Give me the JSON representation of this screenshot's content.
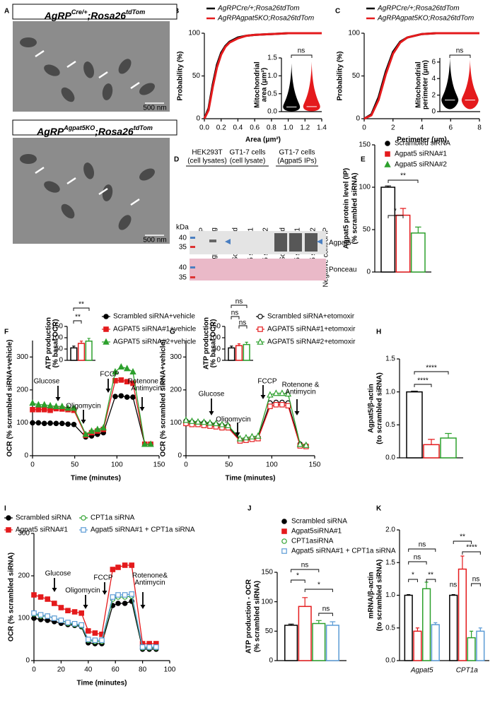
{
  "panel_labels": [
    "A",
    "B",
    "C",
    "D",
    "E",
    "F",
    "G",
    "H",
    "I",
    "J",
    "K"
  ],
  "micrographs": [
    {
      "label": [
        "AgRP",
        "Cre/+",
        ";Rosa26",
        "tdTom"
      ],
      "scale_bar": "500 nm"
    },
    {
      "label": [
        "AgRP",
        "Agpat5KO",
        ";Rosa26",
        "tdTom"
      ],
      "scale_bar": "500 nm"
    }
  ],
  "blot": {
    "groups": [
      [
        "HEK293T",
        "(cell lysates)"
      ],
      [
        "GT1-7 cells",
        "(cell lysate)"
      ],
      [
        "GT1-7 cells",
        "(Agpat5 IPs)"
      ]
    ],
    "lanes": [
      "GFP",
      "Agpat5Flag",
      "Scrambled",
      "Agpat5 siRNA#1",
      "Agpat5 siRNA#2",
      "Scrambled",
      "Agpat5 siRNA#1",
      "Agpat5 siRNA#2",
      "Negative control IP"
    ],
    "unit": "kDa",
    "markers": [
      40,
      35,
      40,
      35
    ],
    "bands": [
      "Agpat5",
      "Ponceau"
    ]
  },
  "chart_data": [
    {
      "type": "line",
      "xlabel": "Area (μm²)",
      "ylabel": "Probability (%)",
      "xlim": [
        0,
        1.4
      ],
      "xticks": [
        {
          "value": 0,
          "label": "0.0"
        },
        0.2,
        0.4,
        0.6,
        0.8,
        {
          "value": 1,
          "label": "1.0"
        },
        1.2,
        1.4
      ],
      "ylim": [
        0,
        100
      ],
      "yticks": [
        0,
        50,
        100
      ],
      "x": [
        0,
        0.05,
        0.1,
        0.15,
        0.2,
        0.25,
        0.3,
        0.4,
        0.5,
        0.6,
        0.8,
        1,
        1.2,
        1.4
      ],
      "series": [
        {
          "name": "AgRPCre/+;Rosa26tdTom",
          "color": "#000000",
          "values": [
            0,
            12,
            40,
            63,
            77,
            85,
            90,
            95,
            97,
            98,
            99,
            100,
            100,
            100
          ]
        },
        {
          "name": "AgRPAgpat5KO;Rosa26tdTom",
          "color": "#e41a1c",
          "values": [
            0,
            10,
            37,
            60,
            75,
            84,
            89,
            94,
            97,
            98,
            99,
            100,
            100,
            100
          ]
        }
      ]
    },
    {
      "type": "line",
      "xlabel": "Perimeter (μm)",
      "ylabel": "Probability (%)",
      "xlim": [
        0,
        8
      ],
      "xticks": [
        0,
        2,
        4,
        6,
        8
      ],
      "ylim": [
        0,
        100
      ],
      "yticks": [
        0,
        50,
        100
      ],
      "x": [
        0,
        0.5,
        1,
        1.5,
        2,
        2.5,
        3,
        4,
        5,
        6,
        7,
        8
      ],
      "series": [
        {
          "name": "AgRPCre/+;Rosa26tdTom",
          "color": "#000000",
          "values": [
            0,
            5,
            25,
            55,
            78,
            90,
            95,
            99,
            100,
            100,
            100,
            100
          ]
        },
        {
          "name": "AgRPAgpat5KO;Rosa26tdTom",
          "color": "#e41a1c",
          "values": [
            0,
            4,
            22,
            52,
            76,
            89,
            95,
            99,
            100,
            100,
            100,
            100
          ]
        }
      ]
    },
    {
      "type": "violin",
      "ylabel": [
        "Mitochondrial",
        "area (μm²)"
      ],
      "ylim": [
        0,
        1.5
      ],
      "yticks": [
        {
          "value": 0,
          "label": "0.0"
        },
        0.5,
        {
          "value": 1,
          "label": "1.0"
        },
        1.5
      ],
      "series": [
        {
          "color": "#000000",
          "min": 0.01,
          "median": 0.13,
          "max": 1.35
        },
        {
          "color": "#e41a1c",
          "min": 0.01,
          "median": 0.14,
          "max": 1.4
        }
      ],
      "annotations": [
        "ns"
      ]
    },
    {
      "type": "violin",
      "ylabel": [
        "Mitochondrial",
        "perimeter (μm)"
      ],
      "ylim": [
        0,
        6.5
      ],
      "yticks": [
        0,
        2,
        4,
        6
      ],
      "series": [
        {
          "color": "#000000",
          "min": 0.3,
          "median": 1.4,
          "max": 6.5
        },
        {
          "color": "#e41a1c",
          "min": 0.3,
          "median": 1.4,
          "max": 6.3
        }
      ],
      "annotations": [
        "ns"
      ]
    },
    {
      "type": "bar",
      "ylabel": [
        "Agpat5 protein level (IP)",
        "(% scrambled siRNA)"
      ],
      "ylim": [
        0,
        150
      ],
      "yticks": [
        0,
        50,
        100,
        150
      ],
      "series": [
        {
          "name": "Scrambled siRNA",
          "color": "#000000",
          "marker": "circle",
          "values": [
            100
          ],
          "errors": [
            1.5
          ]
        },
        {
          "name": "Agpat5 siRNA#1",
          "color": "#e41a1c",
          "marker": "square",
          "values": [
            67
          ],
          "errors": [
            8
          ]
        },
        {
          "name": "Agpat5 siRNA#2",
          "color": "#2ca02c",
          "marker": "triangle",
          "values": [
            46
          ],
          "errors": [
            7
          ]
        }
      ],
      "annotations": [
        "*",
        "**"
      ]
    },
    {
      "type": "line",
      "xlabel": "Time (minutes)",
      "ylabel": "OCR (% scrambled siRNA+vehicle)",
      "xlim": [
        0,
        150
      ],
      "xticks": [
        0,
        50,
        100,
        150
      ],
      "ylim": [
        0,
        350
      ],
      "yticks": [
        0,
        100,
        200,
        300
      ],
      "x": [
        0,
        7,
        14,
        21,
        28,
        35,
        42,
        49,
        63,
        70,
        77,
        84,
        98,
        105,
        112,
        119,
        133,
        140
      ],
      "series": [
        {
          "name": "Scrambled siRNA+vehicle",
          "color": "#000000",
          "marker": "circle",
          "values": [
            100,
            100,
            98,
            99,
            98,
            98,
            96,
            95,
            57,
            60,
            65,
            70,
            180,
            182,
            178,
            178,
            35,
            35
          ]
        },
        {
          "name": "AGPAT5 siRNA#1+vehicle",
          "color": "#e41a1c",
          "marker": "square",
          "values": [
            140,
            140,
            140,
            138,
            143,
            142,
            140,
            138,
            62,
            70,
            75,
            80,
            228,
            230,
            225,
            220,
            35,
            35
          ]
        },
        {
          "name": "AGPAT5 siRNA#2+vehicle",
          "color": "#2ca02c",
          "marker": "triangle",
          "values": [
            160,
            155,
            155,
            152,
            150,
            150,
            145,
            145,
            65,
            75,
            80,
            85,
            255,
            270,
            265,
            255,
            35,
            35
          ]
        }
      ],
      "annotations": [
        "Glucose",
        "Oligomycin",
        "FCCP",
        [
          "Rotenone &",
          "Antimycin"
        ]
      ]
    },
    {
      "type": "bar",
      "ylabel": [
        "ATP production",
        "(% basal OCR)"
      ],
      "ylim": [
        0,
        150
      ],
      "yticks": [
        0,
        50,
        100,
        150
      ],
      "series": [
        {
          "color": "#000000",
          "values": [
            55
          ],
          "errors": [
            8
          ]
        },
        {
          "color": "#e41a1c",
          "values": [
            75
          ],
          "errors": [
            10
          ]
        },
        {
          "color": "#2ca02c",
          "values": [
            85
          ],
          "errors": [
            12
          ]
        }
      ],
      "annotations": [
        "**",
        "**"
      ]
    },
    {
      "type": "line",
      "xlabel": "Time (minutes)",
      "ylabel": "OCR (% scrambled siRNA+vehicle)",
      "xlim": [
        0,
        150
      ],
      "xticks": [
        0,
        50,
        100,
        150
      ],
      "ylim": [
        0,
        350
      ],
      "yticks": [
        0,
        100,
        200,
        300
      ],
      "x": [
        0,
        7,
        14,
        21,
        28,
        35,
        42,
        49,
        63,
        70,
        77,
        84,
        98,
        105,
        112,
        119,
        133,
        140
      ],
      "series": [
        {
          "name": "Scrambled siRNA+etomoxir",
          "color": "#000000",
          "marker": "circle",
          "open": true,
          "values": [
            105,
            102,
            100,
            100,
            97,
            95,
            92,
            90,
            48,
            50,
            52,
            55,
            160,
            162,
            162,
            160,
            35,
            30
          ]
        },
        {
          "name": "AGPAT5 siRNA#1+etomoxir",
          "color": "#e41a1c",
          "marker": "square",
          "open": true,
          "values": [
            98,
            95,
            95,
            92,
            90,
            88,
            85,
            85,
            45,
            47,
            50,
            52,
            150,
            155,
            155,
            152,
            30,
            28
          ]
        },
        {
          "name": "AGPAT5 siRNA#2+etomoxir",
          "color": "#2ca02c",
          "marker": "triangle",
          "open": true,
          "values": [
            108,
            105,
            103,
            102,
            100,
            98,
            95,
            92,
            52,
            55,
            58,
            60,
            185,
            190,
            190,
            188,
            35,
            32
          ]
        }
      ],
      "annotations": [
        "Glucose",
        "Oligomycin",
        "FCCP",
        [
          "Rotenone &",
          "Antimycin"
        ]
      ]
    },
    {
      "type": "bar",
      "ylabel": [
        "ATP production",
        "(% basal OCR)"
      ],
      "ylim": [
        0,
        150
      ],
      "yticks": [
        0,
        50,
        100,
        150
      ],
      "series": [
        {
          "color": "#000000",
          "values": [
            55
          ],
          "errors": [
            8
          ]
        },
        {
          "color": "#e41a1c",
          "values": [
            65
          ],
          "errors": [
            8
          ]
        },
        {
          "color": "#2ca02c",
          "values": [
            70
          ],
          "errors": [
            10
          ]
        }
      ],
      "annotations": [
        "ns",
        "ns",
        "ns"
      ]
    },
    {
      "type": "bar",
      "ylabel": [
        "Agpat5/β-actin",
        "(to scrambled siRNA)"
      ],
      "ylim": [
        0,
        1.5
      ],
      "yticks": [
        {
          "value": 0,
          "label": "0.0"
        },
        0.5,
        {
          "value": 1,
          "label": "1.0"
        },
        1.5
      ],
      "series": [
        {
          "color": "#000000",
          "values": [
            1
          ],
          "errors": [
            0.01
          ]
        },
        {
          "color": "#e41a1c",
          "values": [
            0.2
          ],
          "errors": [
            0.08
          ]
        },
        {
          "color": "#2ca02c",
          "values": [
            0.3
          ],
          "errors": [
            0.07
          ]
        }
      ],
      "annotations": [
        "****",
        "****"
      ]
    },
    {
      "type": "line",
      "xlabel": "Time (minutes)",
      "ylabel": "OCR (% scrambled siRNA)",
      "xlim": [
        0,
        100
      ],
      "xticks": [
        0,
        20,
        40,
        60,
        80,
        100
      ],
      "ylim": [
        0,
        300
      ],
      "yticks": [
        0,
        100,
        200,
        300
      ],
      "x": [
        0,
        5,
        10,
        15,
        20,
        25,
        30,
        35,
        40,
        45,
        50,
        58,
        62,
        67,
        72,
        80,
        85,
        90
      ],
      "series": [
        {
          "name": "Scrambled siRNA",
          "color": "#000000",
          "marker": "circle",
          "values": [
            100,
            97,
            95,
            92,
            88,
            85,
            83,
            80,
            42,
            40,
            40,
            130,
            135,
            135,
            140,
            27,
            27,
            27
          ]
        },
        {
          "name": "Agpat5 siRNA#1",
          "color": "#e41a1c",
          "marker": "square",
          "values": [
            155,
            150,
            145,
            135,
            125,
            118,
            115,
            112,
            70,
            65,
            62,
            215,
            220,
            225,
            225,
            40,
            40,
            40
          ]
        },
        {
          "name": "CPT1a siRNA",
          "color": "#2ca02c",
          "marker": "circle",
          "open": true,
          "values": [
            110,
            105,
            105,
            100,
            95,
            88,
            85,
            82,
            48,
            45,
            45,
            145,
            150,
            150,
            152,
            30,
            30,
            30
          ]
        },
        {
          "name": "Agpat5 siRNA#1 + CPT1a siRNA",
          "color": "#5b9bd5",
          "marker": "square",
          "open": true,
          "values": [
            112,
            108,
            105,
            100,
            95,
            90,
            87,
            84,
            50,
            48,
            48,
            150,
            155,
            155,
            157,
            32,
            32,
            32
          ]
        }
      ],
      "annotations": [
        "Glucose",
        "Oligomycin",
        "FCCP",
        [
          "Rotenone&",
          "Antimycin"
        ]
      ]
    },
    {
      "type": "bar",
      "ylabel": [
        "ATP production - OCR",
        "(% scrambled siRNA)"
      ],
      "ylim": [
        0,
        150
      ],
      "yticks": [
        0,
        50,
        100,
        150
      ],
      "series": [
        {
          "name": "Scrambled siRNA",
          "color": "#000000",
          "marker": "circle",
          "values": [
            60
          ],
          "errors": [
            2
          ]
        },
        {
          "name": "Agpat5siRNA#1",
          "color": "#e41a1c",
          "marker": "square",
          "values": [
            92
          ],
          "errors": [
            15
          ]
        },
        {
          "name": "CPT1asiRNA",
          "color": "#2ca02c",
          "marker": "circle",
          "open": true,
          "values": [
            63
          ],
          "errors": [
            5
          ]
        },
        {
          "name": "Agpat5 siRNA#1 + CPT1a siRNA",
          "color": "#5b9bd5",
          "marker": "square",
          "open": true,
          "values": [
            60
          ],
          "errors": [
            6
          ]
        }
      ],
      "annotations": [
        "ns",
        "*",
        "*",
        "ns"
      ]
    },
    {
      "type": "bar",
      "categories": [
        "Agpat5",
        "CPT1a"
      ],
      "ylabel": [
        "mRNA/β-actin",
        "(to scrambled siRNA)"
      ],
      "ylim": [
        0,
        2
      ],
      "yticks": [
        {
          "value": 0,
          "label": "0.0"
        },
        0.5,
        {
          "value": 1,
          "label": "1.0"
        },
        1.5,
        {
          "value": 2,
          "label": "2.0"
        }
      ],
      "series": [
        {
          "color": "#000000",
          "values": [
            1,
            1
          ],
          "errors": [
            0.01,
            0.01
          ]
        },
        {
          "color": "#e41a1c",
          "values": [
            0.45,
            1.4
          ],
          "errors": [
            0.05,
            0.2
          ]
        },
        {
          "color": "#2ca02c",
          "values": [
            1.1,
            0.35
          ],
          "errors": [
            0.1,
            0.1
          ]
        },
        {
          "color": "#5b9bd5",
          "values": [
            0.55,
            0.45
          ],
          "errors": [
            0.03,
            0.05
          ]
        }
      ],
      "annotations": [
        "ns",
        "ns",
        "*",
        "**",
        "**",
        "****",
        "ns",
        "ns"
      ]
    }
  ]
}
